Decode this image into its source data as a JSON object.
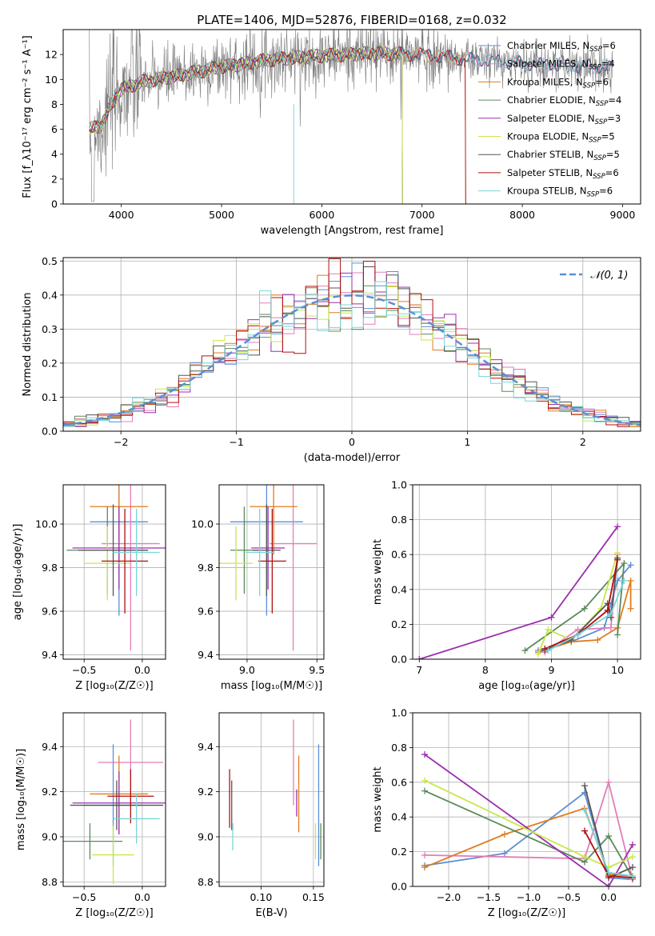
{
  "figure_title": "PLATE=1406, MJD=52876, FIBERID=0168, z=0.032",
  "legend": {
    "spectrum_entries": [
      "Chabrier MILES, N$_{SSP}$=6",
      "Salpeter MILES, N$_{SSP}$=4",
      "Kroupa MILES, N$_{SSP}$=6",
      "Chabrier ELODIE, N$_{SSP}$=4",
      "Salpeter ELODIE, N$_{SSP}$=3",
      "Kroupa ELODIE, N$_{SSP}$=5",
      "Chabrier STELIB, N$_{SSP}$=5",
      "Salpeter STELIB, N$_{SSP}$=6",
      "Kroupa STELIB, N$_{SSP}$=6"
    ],
    "normal_entry": "𝒩(0, 1)"
  },
  "colors": {
    "models": [
      "#5b8fd6",
      "#e37db8",
      "#e07b1c",
      "#5a8a5a",
      "#9b2fae",
      "#c6e84a",
      "#555555",
      "#b01010",
      "#78d6da"
    ],
    "normal_curve": "#5b8fd6",
    "grid": "#b0b0b0"
  },
  "chart_data": [
    {
      "id": "spectrum",
      "type": "line",
      "title": "PLATE=1406, MJD=52876, FIBERID=0168, z=0.032",
      "xlabel": "wavelength [Angstrom, rest frame]",
      "ylabel": "Flux [f_λ10⁻¹⁷ erg cm⁻² s⁻¹ A⁻¹]",
      "xlim": [
        3420,
        9180
      ],
      "ylim": [
        0,
        14
      ],
      "xticks": [
        4000,
        5000,
        6000,
        7000,
        8000,
        9000
      ],
      "yticks": [
        0,
        2,
        4,
        6,
        8,
        10,
        12
      ],
      "grid": false,
      "legend_position": "top-right",
      "continuum": [
        {
          "x": 3680,
          "y": 6.0
        },
        {
          "x": 3800,
          "y": 6.3
        },
        {
          "x": 3900,
          "y": 8.0
        },
        {
          "x": 4000,
          "y": 9.2
        },
        {
          "x": 4200,
          "y": 9.8
        },
        {
          "x": 4500,
          "y": 10.2
        },
        {
          "x": 5000,
          "y": 11.0
        },
        {
          "x": 5500,
          "y": 11.6
        },
        {
          "x": 6000,
          "y": 11.9
        },
        {
          "x": 6500,
          "y": 12.1
        },
        {
          "x": 7000,
          "y": 12.0
        },
        {
          "x": 7500,
          "y": 11.6
        },
        {
          "x": 8000,
          "y": 11.3
        },
        {
          "x": 8500,
          "y": 11.1
        },
        {
          "x": 8900,
          "y": 11.0
        }
      ],
      "model_ranges": [
        {
          "name": "Chabrier MILES",
          "x": [
            3680,
            8900
          ]
        },
        {
          "name": "Salpeter MILES",
          "x": [
            3680,
            8900
          ]
        },
        {
          "name": "Kroupa MILES",
          "x": [
            3680,
            7430
          ]
        },
        {
          "name": "Chabrier ELODIE",
          "x": [
            3680,
            6800
          ]
        },
        {
          "name": "Salpeter ELODIE",
          "x": [
            3680,
            6800
          ]
        },
        {
          "name": "Kroupa ELODIE",
          "x": [
            3680,
            6800
          ]
        },
        {
          "name": "Chabrier STELIB",
          "x": [
            3680,
            8900
          ]
        },
        {
          "name": "Salpeter STELIB",
          "x": [
            3680,
            7430
          ]
        },
        {
          "name": "Kroupa STELIB",
          "x": [
            3680,
            8900
          ]
        }
      ],
      "observed_range": [
        3680,
        8900
      ]
    },
    {
      "id": "residual_hist",
      "type": "bar",
      "xlabel": "(data-model)/error",
      "ylabel": "Normed distribution",
      "xlim": [
        -2.5,
        2.5
      ],
      "ylim": [
        0,
        0.51
      ],
      "xticks": [
        -2,
        -1,
        0,
        1,
        2
      ],
      "yticks": [
        0.0,
        0.1,
        0.2,
        0.3,
        0.4,
        0.5
      ],
      "grid": true,
      "legend_position": "top-right",
      "bin_width": 0.1,
      "normal": {
        "mean": 0,
        "sigma": 1
      }
    },
    {
      "id": "age_vs_Z",
      "type": "scatter",
      "xlabel": "Z [log₁₀(Z/Z☉)]",
      "ylabel": "age  [log₁₀(age/yr)]",
      "xlim": [
        -0.68,
        0.2
      ],
      "ylim": [
        9.38,
        10.18
      ],
      "xticks": [
        -0.5,
        0.0
      ],
      "yticks": [
        9.4,
        9.6,
        9.8,
        10.0
      ],
      "grid": true,
      "points": [
        {
          "x": -0.2,
          "xerr": 0.25,
          "y": 10.01,
          "yerr": 0.43
        },
        {
          "x": -0.1,
          "xerr": 0.25,
          "y": 9.91,
          "yerr": 0.49
        },
        {
          "x": -0.2,
          "xerr": 0.25,
          "y": 10.08,
          "yerr": 0.22
        },
        {
          "x": -0.3,
          "xerr": 0.35,
          "y": 9.88,
          "yerr": 0.2
        },
        {
          "x": -0.2,
          "xerr": 0.4,
          "y": 9.89,
          "yerr": 0.19
        },
        {
          "x": -0.3,
          "xerr": 0.2,
          "y": 9.82,
          "yerr": 0.17
        },
        {
          "x": -0.25,
          "xerr": 0.3,
          "y": 9.88,
          "yerr": 0.21
        },
        {
          "x": -0.15,
          "xerr": 0.2,
          "y": 9.83,
          "yerr": 0.24
        },
        {
          "x": -0.05,
          "xerr": 0.2,
          "y": 9.87,
          "yerr": 0.2
        }
      ]
    },
    {
      "id": "age_vs_mass",
      "type": "scatter",
      "xlabel": "mass [log₁₀(M/M☉)]",
      "ylabel": "",
      "xlim": [
        8.8,
        9.55
      ],
      "ylim": [
        9.38,
        10.18
      ],
      "xticks": [
        9.0,
        9.5
      ],
      "yticks": [
        9.4,
        9.6,
        9.8,
        10.0
      ],
      "grid": true,
      "points": [
        {
          "x": 9.14,
          "xerr": 0.26,
          "y": 10.01,
          "yerr": 0.43
        },
        {
          "x": 9.33,
          "xerr": 0.17,
          "y": 9.91,
          "yerr": 0.49
        },
        {
          "x": 9.19,
          "xerr": 0.17,
          "y": 10.08,
          "yerr": 0.22
        },
        {
          "x": 8.98,
          "xerr": 0.1,
          "y": 9.88,
          "yerr": 0.2
        },
        {
          "x": 9.15,
          "xerr": 0.12,
          "y": 9.89,
          "yerr": 0.19
        },
        {
          "x": 8.92,
          "xerr": 0.12,
          "y": 9.82,
          "yerr": 0.17
        },
        {
          "x": 9.14,
          "xerr": 0.1,
          "y": 9.88,
          "yerr": 0.21
        },
        {
          "x": 9.18,
          "xerr": 0.1,
          "y": 9.83,
          "yerr": 0.24
        },
        {
          "x": 9.09,
          "xerr": 0.1,
          "y": 9.87,
          "yerr": 0.2
        }
      ]
    },
    {
      "id": "mass_weight_vs_age",
      "type": "line",
      "xlabel": "age  [log₁₀(age/yr)]",
      "ylabel": "mass weight",
      "xlim": [
        6.9,
        10.35
      ],
      "ylim": [
        0,
        1.0
      ],
      "xticks": [
        7,
        8,
        9,
        10
      ],
      "yticks": [
        0.0,
        0.2,
        0.4,
        0.6,
        0.8,
        1.0
      ],
      "grid": true,
      "series": [
        {
          "x": [
            8.8,
            9.3,
            9.8,
            10.0,
            10.2
          ],
          "y": [
            0.05,
            0.1,
            0.18,
            0.45,
            0.54
          ]
        },
        {
          "x": [
            8.9,
            9.4,
            9.9,
            10.0
          ],
          "y": [
            0.04,
            0.17,
            0.18,
            0.6
          ]
        },
        {
          "x": [
            8.8,
            9.3,
            9.7,
            10.0,
            10.2,
            10.2
          ],
          "y": [
            0.04,
            0.1,
            0.11,
            0.18,
            0.45,
            0.29
          ]
        },
        {
          "x": [
            8.6,
            9.5,
            10.1,
            10.0
          ],
          "y": [
            0.05,
            0.29,
            0.55,
            0.14
          ]
        },
        {
          "x": [
            7.0,
            9.0,
            10.0
          ],
          "y": [
            0.0,
            0.24,
            0.76
          ]
        },
        {
          "x": [
            8.8,
            8.95,
            9.3,
            9.75,
            10.0
          ],
          "y": [
            0.03,
            0.17,
            0.11,
            0.29,
            0.61
          ]
        },
        {
          "x": [
            8.9,
            9.3,
            9.85,
            9.9,
            10.0
          ],
          "y": [
            0.05,
            0.11,
            0.32,
            0.24,
            0.58
          ]
        },
        {
          "x": [
            8.9,
            9.4,
            9.85,
            10.0
          ],
          "y": [
            0.06,
            0.14,
            0.28,
            0.57
          ]
        },
        {
          "x": [
            8.95,
            9.4,
            9.9,
            10.1
          ],
          "y": [
            0.05,
            0.14,
            0.26,
            0.45
          ]
        }
      ]
    },
    {
      "id": "mass_vs_Z",
      "type": "scatter",
      "xlabel": "Z [log₁₀(Z/Z☉)]",
      "ylabel": "mass [log₁₀(M/M☉)]",
      "xlim": [
        -0.68,
        0.2
      ],
      "ylim": [
        8.78,
        9.55
      ],
      "xticks": [
        -0.5,
        0.0
      ],
      "yticks": [
        8.8,
        9.0,
        9.2,
        9.4
      ],
      "grid": true,
      "points": [
        {
          "x": -0.25,
          "xerr": 0.25,
          "y": 9.14,
          "yerr": 0.27
        },
        {
          "x": -0.1,
          "xerr": 0.28,
          "y": 9.33,
          "yerr": 0.19
        },
        {
          "x": -0.2,
          "xerr": 0.25,
          "y": 9.19,
          "yerr": 0.17
        },
        {
          "x": -0.45,
          "xerr": 0.28,
          "y": 8.98,
          "yerr": 0.08
        },
        {
          "x": -0.2,
          "xerr": 0.4,
          "y": 9.15,
          "yerr": 0.14
        },
        {
          "x": -0.25,
          "xerr": 0.18,
          "y": 8.92,
          "yerr": 0.13
        },
        {
          "x": -0.22,
          "xerr": 0.4,
          "y": 9.14,
          "yerr": 0.11
        },
        {
          "x": -0.1,
          "xerr": 0.2,
          "y": 9.18,
          "yerr": 0.12
        },
        {
          "x": -0.05,
          "xerr": 0.2,
          "y": 9.08,
          "yerr": 0.11
        }
      ]
    },
    {
      "id": "mass_vs_ebv",
      "type": "scatter",
      "xlabel": "E(B-V)",
      "ylabel": "",
      "xlim": [
        0.06,
        0.16
      ],
      "ylim": [
        8.78,
        9.55
      ],
      "xticks": [
        0.1,
        0.15
      ],
      "yticks": [
        8.8,
        9.0,
        9.2,
        9.4
      ],
      "grid": true,
      "points": [
        {
          "x": 0.155,
          "y": 9.14,
          "yerr": 0.27
        },
        {
          "x": 0.131,
          "y": 9.33,
          "yerr": 0.19
        },
        {
          "x": 0.136,
          "y": 9.19,
          "yerr": 0.17
        },
        {
          "x": 0.157,
          "y": 8.98,
          "yerr": 0.08
        },
        {
          "x": 0.134,
          "y": 9.15,
          "yerr": 0.06
        },
        {
          "x": 0.152,
          "y": 8.98,
          "yerr": 0.08
        },
        {
          "x": 0.072,
          "y": 9.14,
          "yerr": 0.11
        },
        {
          "x": 0.07,
          "y": 9.17,
          "yerr": 0.13
        },
        {
          "x": 0.073,
          "y": 9.0,
          "yerr": 0.06
        }
      ]
    },
    {
      "id": "mass_weight_vs_Z",
      "type": "line",
      "xlabel": "Z [log₁₀(Z/Z☉)]",
      "ylabel": "mass weight",
      "xlim": [
        -2.45,
        0.4
      ],
      "ylim": [
        0,
        1.0
      ],
      "xticks": [
        -2.0,
        -1.5,
        -1.0,
        -0.5,
        0.0
      ],
      "yticks": [
        0.0,
        0.2,
        0.4,
        0.6,
        0.8,
        1.0
      ],
      "grid": true,
      "series": [
        {
          "x": [
            -2.3,
            -1.3,
            -0.3,
            0.0,
            0.3
          ],
          "y": [
            0.12,
            0.19,
            0.54,
            0.05,
            0.04
          ]
        },
        {
          "x": [
            -2.3,
            -0.3,
            0.0,
            0.3
          ],
          "y": [
            0.18,
            0.16,
            0.6,
            0.04
          ]
        },
        {
          "x": [
            -2.3,
            -1.3,
            -0.3,
            0.0,
            0.3
          ],
          "y": [
            0.11,
            0.3,
            0.45,
            0.07,
            0.06
          ]
        },
        {
          "x": [
            -2.3,
            -0.3,
            0.0,
            0.3
          ],
          "y": [
            0.55,
            0.14,
            0.29,
            0.05
          ]
        },
        {
          "x": [
            -2.3,
            0.0,
            0.3
          ],
          "y": [
            0.76,
            0.0,
            0.24
          ]
        },
        {
          "x": [
            -2.3,
            -0.3,
            0.0,
            0.3
          ],
          "y": [
            0.61,
            0.17,
            0.11,
            0.17
          ]
        },
        {
          "x": [
            -0.3,
            0.0,
            0.3
          ],
          "y": [
            0.58,
            0.05,
            0.11
          ]
        },
        {
          "x": [
            -0.3,
            0.0,
            0.3
          ],
          "y": [
            0.32,
            0.06,
            0.05
          ]
        },
        {
          "x": [
            -0.3,
            0.0,
            0.3
          ],
          "y": [
            0.44,
            0.08,
            0.06
          ]
        }
      ]
    }
  ]
}
